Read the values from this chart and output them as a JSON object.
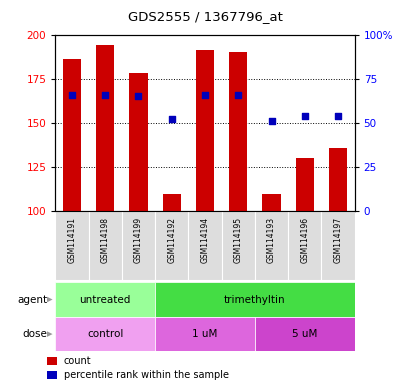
{
  "title": "GDS2555 / 1367796_at",
  "samples": [
    "GSM114191",
    "GSM114198",
    "GSM114199",
    "GSM114192",
    "GSM114194",
    "GSM114195",
    "GSM114193",
    "GSM114196",
    "GSM114197"
  ],
  "counts": [
    186,
    194,
    178,
    110,
    191,
    190,
    110,
    130,
    136
  ],
  "percentile_ranks_pct": [
    66,
    66,
    65,
    52,
    66,
    66,
    51,
    54,
    54
  ],
  "ylim_left": [
    100,
    200
  ],
  "ylim_right": [
    0,
    100
  ],
  "yticks_left": [
    100,
    125,
    150,
    175,
    200
  ],
  "yticks_right": [
    0,
    25,
    50,
    75,
    100
  ],
  "bar_color": "#cc0000",
  "dot_color": "#0000bb",
  "bar_width": 0.55,
  "agent_groups": [
    {
      "label": "untreated",
      "start": 0,
      "end": 3,
      "color": "#99ff99"
    },
    {
      "label": "trimethyltin",
      "start": 3,
      "end": 9,
      "color": "#44dd44"
    }
  ],
  "dose_groups": [
    {
      "label": "control",
      "start": 0,
      "end": 3,
      "color": "#f0a0f0"
    },
    {
      "label": "1 uM",
      "start": 3,
      "end": 6,
      "color": "#dd66dd"
    },
    {
      "label": "5 uM",
      "start": 6,
      "end": 9,
      "color": "#cc44cc"
    }
  ],
  "legend_count_label": "count",
  "legend_percentile_label": "percentile rank within the sample",
  "agent_row_label": "agent",
  "dose_row_label": "dose"
}
